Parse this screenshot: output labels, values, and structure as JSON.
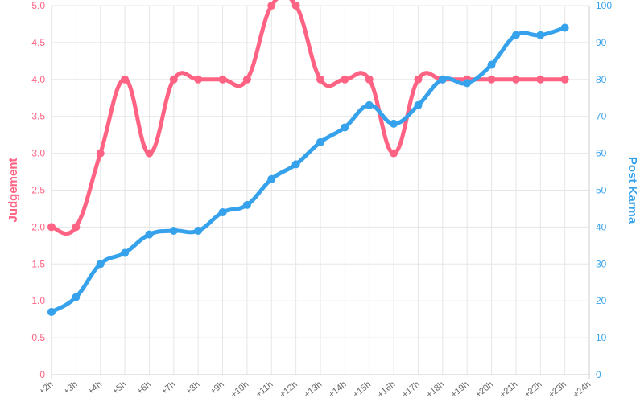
{
  "chart_data": {
    "type": "line",
    "categories": [
      "+2h",
      "+3h",
      "+4h",
      "+5h",
      "+6h",
      "+7h",
      "+8h",
      "+9h",
      "+10h",
      "+11h",
      "+12h",
      "+13h",
      "+14h",
      "+15h",
      "+16h",
      "+17h",
      "+18h",
      "+19h",
      "+20h",
      "+21h",
      "+22h",
      "+23h",
      "+24h"
    ],
    "series": [
      {
        "name": "Judgement",
        "axis": "left",
        "color": "#ff6384",
        "values": [
          2,
          2,
          3,
          4,
          3,
          4,
          4,
          4,
          4,
          5,
          5,
          4,
          4,
          4,
          3,
          4,
          4,
          4,
          4,
          4,
          4,
          4,
          null
        ]
      },
      {
        "name": "Post Karma",
        "axis": "right",
        "color": "#36a2eb",
        "values": [
          17,
          21,
          30,
          33,
          38,
          39,
          39,
          44,
          46,
          53,
          57,
          63,
          67,
          73,
          68,
          73,
          80,
          79,
          84,
          92,
          92,
          94,
          null
        ]
      }
    ],
    "y_left": {
      "label": "Judgement",
      "ylim": [
        0,
        5
      ],
      "ticks": [
        "0",
        "0.5",
        "1.0",
        "1.5",
        "2.0",
        "2.5",
        "3.0",
        "3.5",
        "4.0",
        "4.5",
        "5.0"
      ]
    },
    "y_right": {
      "label": "Post Karma",
      "ylim": [
        0,
        100
      ],
      "ticks": [
        "0",
        "10",
        "20",
        "30",
        "40",
        "50",
        "60",
        "70",
        "80",
        "90",
        "100"
      ]
    },
    "grid": true,
    "legend": "none"
  }
}
